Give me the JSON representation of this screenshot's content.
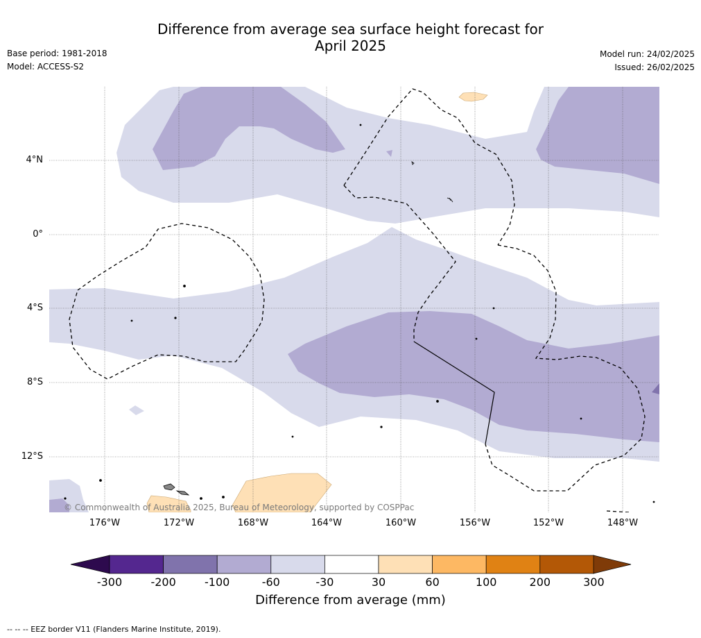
{
  "title": {
    "line1": "Difference from average sea surface height forecast for",
    "line2": "April 2025"
  },
  "meta": {
    "base_period": "Base period: 1981-2018",
    "model": "Model: ACCESS-S2",
    "model_run": "Model run: 24/02/2025",
    "issued": "Issued: 26/02/2025"
  },
  "map": {
    "latitude_labels": [
      "4°N",
      "0°",
      "4°S",
      "8°S",
      "12°S"
    ],
    "longitude_labels": [
      "176°W",
      "172°W",
      "168°W",
      "164°W",
      "160°W",
      "156°W",
      "152°W",
      "148°W"
    ],
    "copyright": "© Commonwealth of Australia 2025, Bureau of Meteorology, supported by COSPPac",
    "grid": true
  },
  "colorbar": {
    "title": "Difference from average (mm)",
    "ticks": [
      "-300",
      "-200",
      "-100",
      "-60",
      "-30",
      "30",
      "60",
      "100",
      "200",
      "300"
    ],
    "colors": [
      "#2d0a4e",
      "#54278f",
      "#8073ac",
      "#b2abd2",
      "#d8daeb",
      "#ffffff",
      "#fee0b6",
      "#fdb863",
      "#e08214",
      "#b35806",
      "#7f3b08"
    ],
    "extend": "both"
  },
  "footer": {
    "legend": "--  --  -- EEZ border V11 (Flanders Marine Institute, 2019)."
  }
}
